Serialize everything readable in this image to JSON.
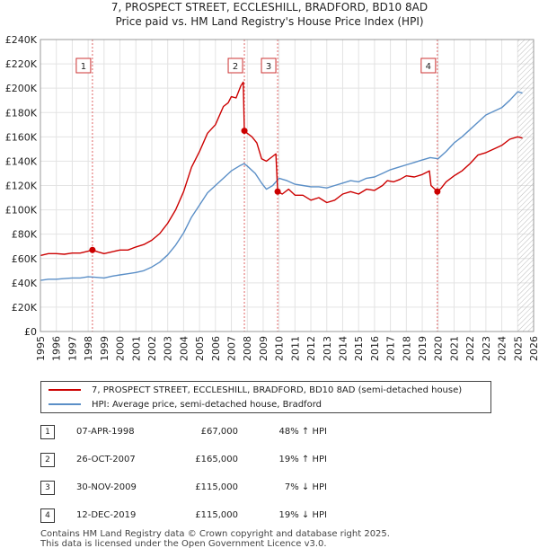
{
  "title": {
    "line1": "7, PROSPECT STREET, ECCLESHILL, BRADFORD, BD10 8AD",
    "line2": "Price paid vs. HM Land Registry's House Price Index (HPI)"
  },
  "chart_data": {
    "type": "line",
    "title": "7, PROSPECT STREET, ECCLESHILL, BRADFORD, BD10 8AD — Price paid vs. HM Land Registry's House Price Index (HPI)",
    "xlabel": "",
    "ylabel": "",
    "xlim": [
      1995,
      2026
    ],
    "ylim": [
      0,
      240000
    ],
    "x_ticks": [
      "1995",
      "1996",
      "1997",
      "1998",
      "1999",
      "2000",
      "2001",
      "2002",
      "2003",
      "2004",
      "2005",
      "2006",
      "2007",
      "2008",
      "2009",
      "2010",
      "2011",
      "2012",
      "2013",
      "2014",
      "2015",
      "2016",
      "2017",
      "2018",
      "2019",
      "2020",
      "2021",
      "2022",
      "2023",
      "2024",
      "2025",
      "2026"
    ],
    "y_ticks": [
      "£0",
      "£20K",
      "£40K",
      "£60K",
      "£80K",
      "£100K",
      "£120K",
      "£140K",
      "£160K",
      "£180K",
      "£200K",
      "£220K",
      "£240K"
    ],
    "grid": true,
    "series": [
      {
        "name": "7, PROSPECT STREET, ECCLESHILL, BRADFORD, BD10 8AD (semi-detached house)",
        "color": "#cc0000",
        "points": [
          [
            1995.0,
            62500
          ],
          [
            1995.5,
            64000
          ],
          [
            1996.0,
            64000
          ],
          [
            1996.5,
            63500
          ],
          [
            1997.0,
            64500
          ],
          [
            1997.5,
            64500
          ],
          [
            1998.0,
            66000
          ],
          [
            1998.27,
            67000
          ],
          [
            1998.6,
            65500
          ],
          [
            1999.0,
            64000
          ],
          [
            1999.5,
            65500
          ],
          [
            2000.0,
            67000
          ],
          [
            2000.5,
            67000
          ],
          [
            2001.0,
            69500
          ],
          [
            2001.5,
            71500
          ],
          [
            2002.0,
            75000
          ],
          [
            2002.5,
            80500
          ],
          [
            2003.0,
            89000
          ],
          [
            2003.5,
            100000
          ],
          [
            2004.0,
            115000
          ],
          [
            2004.5,
            135000
          ],
          [
            2005.0,
            148000
          ],
          [
            2005.5,
            163000
          ],
          [
            2006.0,
            170000
          ],
          [
            2006.5,
            185000
          ],
          [
            2006.8,
            188000
          ],
          [
            2007.0,
            193000
          ],
          [
            2007.3,
            192000
          ],
          [
            2007.6,
            202000
          ],
          [
            2007.75,
            205000
          ],
          [
            2007.82,
            165000
          ],
          [
            2008.0,
            163000
          ],
          [
            2008.3,
            160000
          ],
          [
            2008.6,
            155000
          ],
          [
            2008.9,
            142000
          ],
          [
            2009.2,
            140000
          ],
          [
            2009.6,
            144000
          ],
          [
            2009.8,
            146000
          ],
          [
            2009.91,
            115000
          ],
          [
            2010.2,
            113000
          ],
          [
            2010.6,
            117000
          ],
          [
            2011.0,
            112000
          ],
          [
            2011.5,
            112000
          ],
          [
            2012.0,
            108000
          ],
          [
            2012.5,
            110000
          ],
          [
            2013.0,
            106000
          ],
          [
            2013.5,
            108000
          ],
          [
            2014.0,
            113000
          ],
          [
            2014.5,
            115000
          ],
          [
            2015.0,
            113000
          ],
          [
            2015.5,
            117000
          ],
          [
            2016.0,
            116000
          ],
          [
            2016.5,
            120000
          ],
          [
            2016.8,
            124000
          ],
          [
            2017.2,
            123000
          ],
          [
            2017.6,
            125000
          ],
          [
            2018.0,
            128000
          ],
          [
            2018.5,
            127000
          ],
          [
            2019.0,
            129000
          ],
          [
            2019.3,
            131000
          ],
          [
            2019.45,
            132000
          ],
          [
            2019.55,
            120000
          ],
          [
            2019.95,
            115000
          ],
          [
            2020.2,
            118000
          ],
          [
            2020.5,
            123000
          ],
          [
            2021.0,
            128000
          ],
          [
            2021.5,
            132000
          ],
          [
            2022.0,
            138000
          ],
          [
            2022.5,
            145000
          ],
          [
            2023.0,
            147000
          ],
          [
            2023.5,
            150000
          ],
          [
            2024.0,
            153000
          ],
          [
            2024.5,
            158000
          ],
          [
            2025.0,
            160000
          ],
          [
            2025.3,
            159000
          ]
        ]
      },
      {
        "name": "HPI: Average price, semi-detached house, Bradford",
        "color": "#5b8fc7",
        "points": [
          [
            1995.0,
            42000
          ],
          [
            1995.5,
            43000
          ],
          [
            1996.0,
            43000
          ],
          [
            1996.5,
            43500
          ],
          [
            1997.0,
            44000
          ],
          [
            1997.5,
            44000
          ],
          [
            1998.0,
            45000
          ],
          [
            1998.5,
            44500
          ],
          [
            1999.0,
            44000
          ],
          [
            1999.5,
            45500
          ],
          [
            2000.0,
            46500
          ],
          [
            2000.5,
            47500
          ],
          [
            2001.0,
            48500
          ],
          [
            2001.5,
            50000
          ],
          [
            2002.0,
            53000
          ],
          [
            2002.5,
            57000
          ],
          [
            2003.0,
            63000
          ],
          [
            2003.5,
            71000
          ],
          [
            2004.0,
            81000
          ],
          [
            2004.5,
            94000
          ],
          [
            2005.0,
            104000
          ],
          [
            2005.5,
            114000
          ],
          [
            2006.0,
            120000
          ],
          [
            2006.5,
            126000
          ],
          [
            2007.0,
            132000
          ],
          [
            2007.5,
            136000
          ],
          [
            2007.8,
            138000
          ],
          [
            2008.0,
            136000
          ],
          [
            2008.5,
            130000
          ],
          [
            2008.9,
            122000
          ],
          [
            2009.2,
            117000
          ],
          [
            2009.6,
            120000
          ],
          [
            2010.0,
            126000
          ],
          [
            2010.5,
            124000
          ],
          [
            2011.0,
            121000
          ],
          [
            2011.5,
            120000
          ],
          [
            2012.0,
            119000
          ],
          [
            2012.5,
            119000
          ],
          [
            2013.0,
            118000
          ],
          [
            2013.5,
            120000
          ],
          [
            2014.0,
            122000
          ],
          [
            2014.5,
            124000
          ],
          [
            2015.0,
            123000
          ],
          [
            2015.5,
            126000
          ],
          [
            2016.0,
            127000
          ],
          [
            2016.5,
            130000
          ],
          [
            2017.0,
            133000
          ],
          [
            2017.5,
            135000
          ],
          [
            2018.0,
            137000
          ],
          [
            2018.5,
            139000
          ],
          [
            2019.0,
            141000
          ],
          [
            2019.5,
            143000
          ],
          [
            2020.0,
            142000
          ],
          [
            2020.5,
            148000
          ],
          [
            2021.0,
            155000
          ],
          [
            2021.5,
            160000
          ],
          [
            2022.0,
            166000
          ],
          [
            2022.5,
            172000
          ],
          [
            2023.0,
            178000
          ],
          [
            2023.5,
            181000
          ],
          [
            2024.0,
            184000
          ],
          [
            2024.5,
            190000
          ],
          [
            2025.0,
            197000
          ],
          [
            2025.3,
            196000
          ]
        ]
      }
    ],
    "annotations": [
      {
        "label": "1",
        "x": 1998.27,
        "value": 67000
      },
      {
        "label": "2",
        "x": 2007.82,
        "value": 165000
      },
      {
        "label": "3",
        "x": 2009.91,
        "value": 115000
      },
      {
        "label": "4",
        "x": 2019.95,
        "value": 115000
      }
    ],
    "hatched_from": 2025.0
  },
  "legend": {
    "property_label": "7, PROSPECT STREET, ECCLESHILL, BRADFORD, BD10 8AD (semi-detached house)",
    "hpi_label": "HPI: Average price, semi-detached house, Bradford",
    "property_color": "#cc0000",
    "hpi_color": "#5b8fc7"
  },
  "transactions": [
    {
      "num": "1",
      "date": "07-APR-1998",
      "price": "£67,000",
      "hpi": "48% ↑ HPI"
    },
    {
      "num": "2",
      "date": "26-OCT-2007",
      "price": "£165,000",
      "hpi": "19% ↑ HPI"
    },
    {
      "num": "3",
      "date": "30-NOV-2009",
      "price": "£115,000",
      "hpi": "7% ↓ HPI"
    },
    {
      "num": "4",
      "date": "12-DEC-2019",
      "price": "£115,000",
      "hpi": "19% ↓ HPI"
    }
  ],
  "footer": {
    "line1": "Contains HM Land Registry data © Crown copyright and database right 2025.",
    "line2": "This data is licensed under the Open Government Licence v3.0."
  }
}
